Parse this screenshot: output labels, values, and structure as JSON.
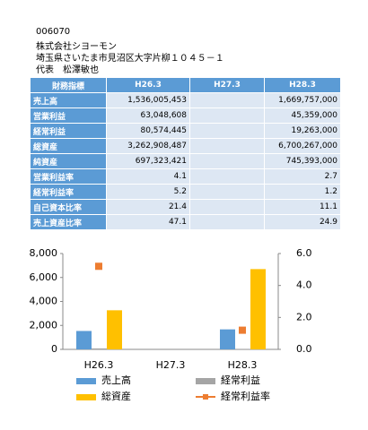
{
  "header": {
    "code": "006070",
    "company": "株式会社シヨーモン",
    "address": "埼玉県さいたま市見沼区大字片柳１０４５－１",
    "representative": "代表　松澤敏也"
  },
  "table": {
    "columns": [
      "財務指標",
      "H26.3",
      "H27.3",
      "H28.3"
    ],
    "rows": [
      [
        "売上高",
        "1,536,005,453",
        "",
        "1,669,757,000"
      ],
      [
        "営業利益",
        "63,048,608",
        "",
        "45,359,000"
      ],
      [
        "経常利益",
        "80,574,445",
        "",
        "19,263,000"
      ],
      [
        "総資産",
        "3,262,908,487",
        "",
        "6,700,267,000"
      ],
      [
        "純資産",
        "697,323,421",
        "",
        "745,393,000"
      ],
      [
        "営業利益率",
        "4.1",
        "",
        "2.7"
      ],
      [
        "経常利益率",
        "5.2",
        "",
        "1.2"
      ],
      [
        "自己資本比率",
        "21.4",
        "",
        "11.1"
      ],
      [
        "売上資産比率",
        "47.1",
        "",
        "24.9"
      ]
    ]
  },
  "chart_data": {
    "type": "bar",
    "categories": [
      "H26.3",
      "H27.3",
      "H28.3"
    ],
    "series": [
      {
        "name": "売上高",
        "color": "#5b9bd5",
        "values": [
          1536,
          null,
          1670
        ]
      },
      {
        "name": "経常利益",
        "color": "#a5a5a5",
        "values": [
          81,
          null,
          19
        ]
      },
      {
        "name": "総資産",
        "color": "#ffc000",
        "values": [
          3263,
          null,
          6700
        ]
      },
      {
        "name": "経常利益率",
        "color": "#ed7d31",
        "axis": "y2",
        "type": "marker",
        "values": [
          5.2,
          null,
          1.2
        ]
      }
    ],
    "ylim": [
      0,
      8000
    ],
    "yticks": [
      0,
      {
        "value": 2000,
        "label": "2,000"
      },
      {
        "value": 4000,
        "label": "4,000"
      },
      {
        "value": 6000,
        "label": "6,000"
      },
      {
        "value": 8000,
        "label": "8,000"
      }
    ],
    "y2lim": [
      0,
      6
    ],
    "y2ticks": [
      {
        "value": 0,
        "label": "0.0"
      },
      {
        "value": 2,
        "label": "2.0"
      },
      {
        "value": 4,
        "label": "4.0"
      },
      {
        "value": 6,
        "label": "6.0"
      }
    ]
  }
}
